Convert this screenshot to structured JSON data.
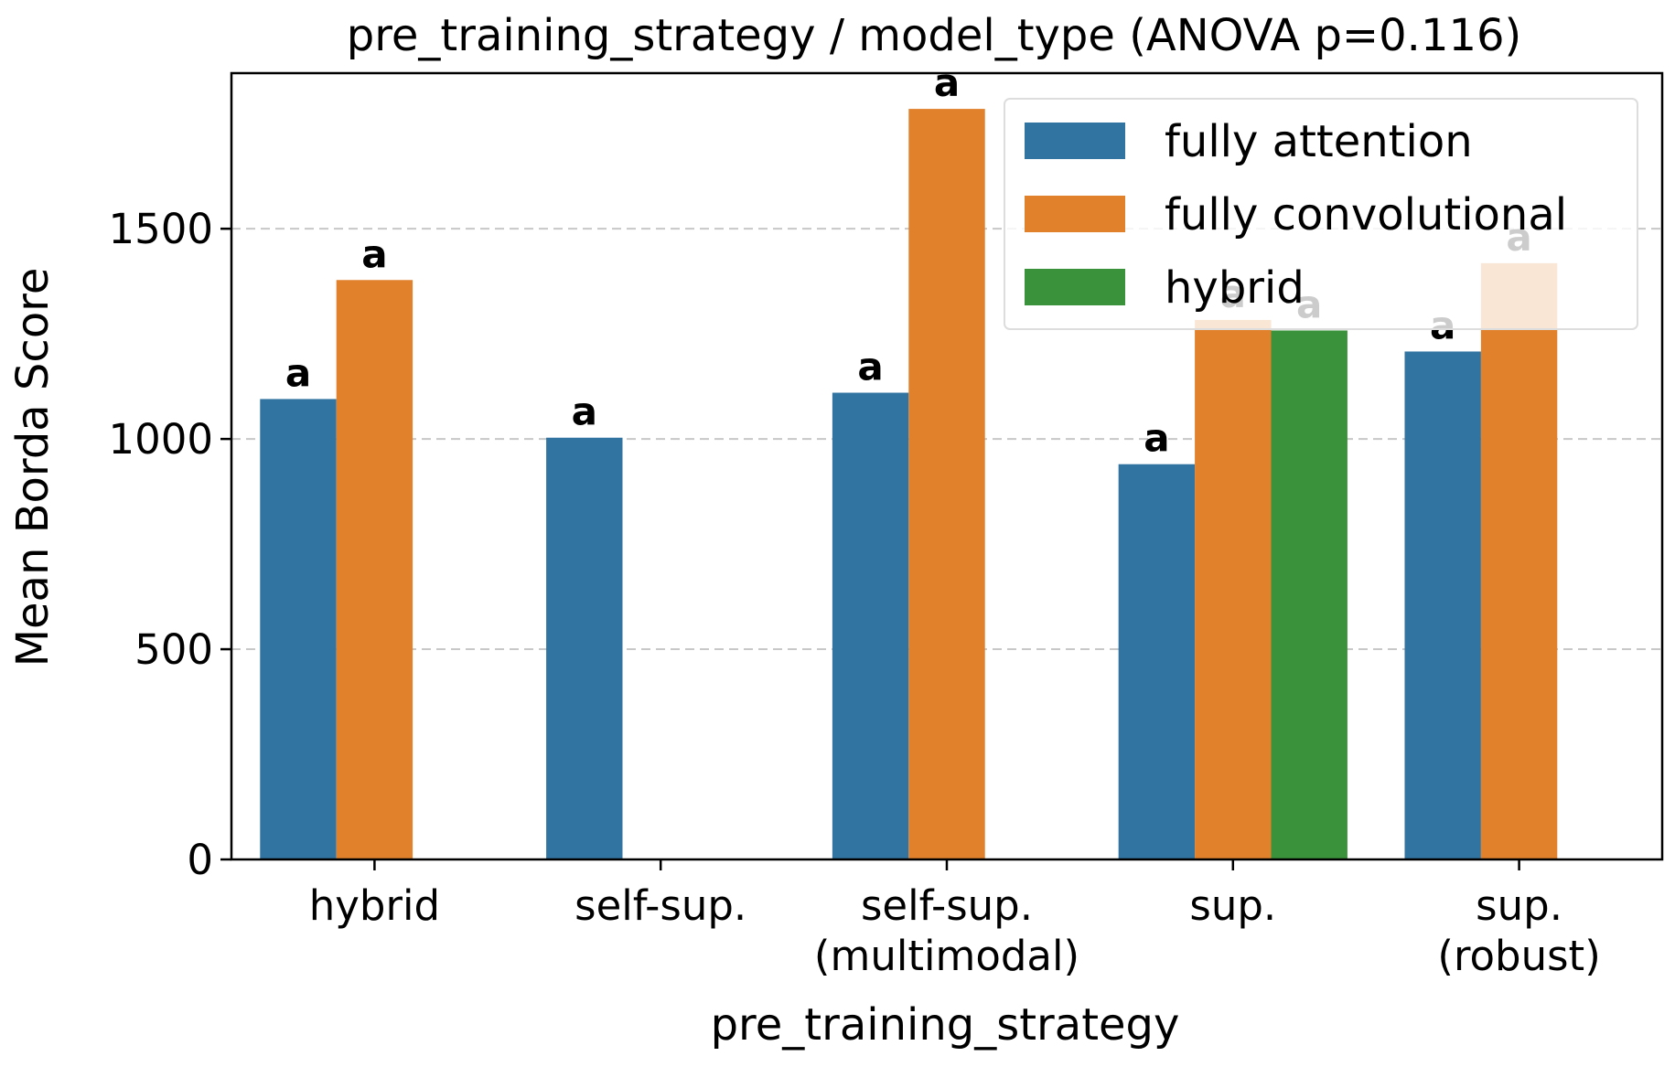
{
  "chart_data": {
    "type": "bar",
    "title": "pre_training_strategy / model_type  (ANOVA p=0.116)",
    "xlabel": "pre_training_strategy",
    "ylabel": "Mean Borda Score",
    "ylim": [
      0,
      1870
    ],
    "yticks": [
      0,
      500,
      1000,
      1500
    ],
    "grid": "y-dashed",
    "legend_position": "top-right",
    "categories": [
      [
        "hybrid"
      ],
      [
        "self-sup."
      ],
      [
        "self-sup.",
        "(multimodal)"
      ],
      [
        "sup."
      ],
      [
        "sup.",
        "(robust)"
      ]
    ],
    "series": [
      {
        "name": "fully attention",
        "color": "#3274a1",
        "values": [
          1095,
          1003,
          1110,
          940,
          1208
        ],
        "labels": [
          "a",
          "a",
          "a",
          "a",
          "a"
        ]
      },
      {
        "name": "fully convolutional",
        "color": "#e1812c",
        "values": [
          1378,
          null,
          1785,
          1283,
          1418
        ],
        "labels": [
          "a",
          null,
          "a",
          "a",
          "a"
        ]
      },
      {
        "name": "hybrid",
        "color": "#3a923a",
        "values": [
          null,
          null,
          null,
          1258,
          null
        ],
        "labels": [
          null,
          null,
          null,
          "a",
          null
        ]
      }
    ]
  }
}
